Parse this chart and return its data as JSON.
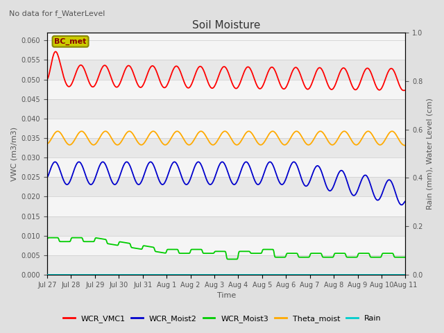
{
  "title": "Soil Moisture",
  "subtitle": "No data for f_WaterLevel",
  "xlabel": "Time",
  "ylabel_left": "VWC (m3/m3)",
  "ylabel_right": "Rain (mm), Water Level (cm)",
  "ylim_left": [
    0.0,
    0.062
  ],
  "ylim_right": [
    0.0,
    1.0
  ],
  "yticks_left": [
    0.0,
    0.005,
    0.01,
    0.015,
    0.02,
    0.025,
    0.03,
    0.035,
    0.04,
    0.045,
    0.05,
    0.055,
    0.06
  ],
  "yticks_right": [
    0.0,
    0.2,
    0.4,
    0.6,
    0.8,
    1.0
  ],
  "bg_color": "#e0e0e0",
  "axes_bg_stripes": [
    "#f0f0f0",
    "#e0e0e0"
  ],
  "legend_items": [
    "WCR_VMC1",
    "WCR_Moist2",
    "WCR_Moist3",
    "Theta_moist",
    "Rain"
  ],
  "legend_colors": [
    "#ff0000",
    "#0000cc",
    "#00cc00",
    "#ffaa00",
    "#00cccc"
  ],
  "bc_met_box_facecolor": "#cccc00",
  "bc_met_box_edgecolor": "#888800",
  "bc_met_text_color": "#880000",
  "annotation_text": "BC_met",
  "tick_label_color": "#555555",
  "title_color": "#333333",
  "grid_color": "#cccccc"
}
